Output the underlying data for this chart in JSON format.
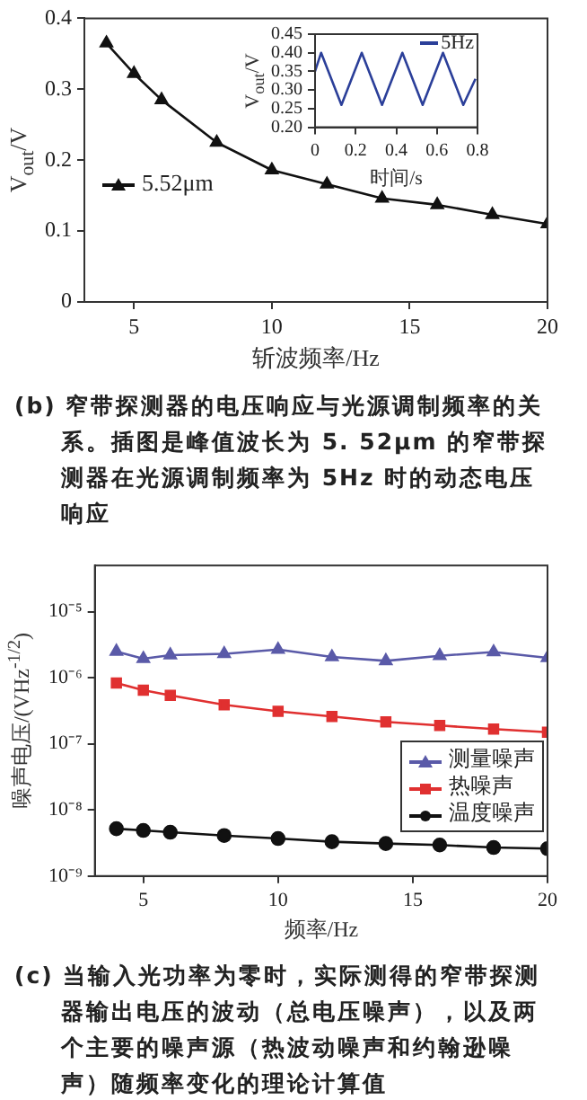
{
  "chart_data": [
    {
      "type": "line",
      "xlabel": "斩波频率/Hz",
      "ylabel": "V$_{out}$/V",
      "x": [
        4,
        5,
        6,
        8,
        10,
        12,
        14,
        16,
        18,
        20
      ],
      "series": [
        {
          "name": "5.52μm",
          "color": "#111111",
          "values": [
            0.365,
            0.322,
            0.285,
            0.225,
            0.186,
            0.166,
            0.146,
            0.137,
            0.123,
            0.11
          ]
        }
      ],
      "xlim": [
        3.2,
        20
      ],
      "xticks": [
        5,
        10,
        15,
        20
      ],
      "ylim": [
        0,
        0.4
      ],
      "yticks": [
        0,
        0.1,
        0.2,
        0.3,
        0.4
      ],
      "marker": "triangle",
      "legend": "left",
      "annotations": [
        "(b) 窄带探测器的电压响应与光源调制频率的关系。插图是峰值波长为 5. 52μm 的窄带探测器在光源调制频率为 5Hz 时的动态电压响应"
      ]
    },
    {
      "type": "line",
      "xlabel": "时间/s",
      "ylabel": "V$_{out}$/V",
      "x": [
        0,
        0.03,
        0.13,
        0.23,
        0.33,
        0.43,
        0.53,
        0.63,
        0.73,
        0.79
      ],
      "series": [
        {
          "name": "5Hz",
          "color": "#2b3f99",
          "values": [
            0.35,
            0.4,
            0.26,
            0.4,
            0.26,
            0.4,
            0.26,
            0.4,
            0.26,
            0.33
          ]
        }
      ],
      "xlim": [
        0,
        0.8
      ],
      "xticks": [
        0,
        0.2,
        0.4,
        0.6,
        0.8
      ],
      "ylim": [
        0.2,
        0.45
      ],
      "yticks": [
        {
          "value": 0.2,
          "label": "0.20"
        },
        {
          "value": 0.25,
          "label": "0.25"
        },
        {
          "value": 0.3,
          "label": "0.30"
        },
        {
          "value": 0.35,
          "label": "0.35"
        },
        {
          "value": 0.4,
          "label": "0.40"
        },
        {
          "value": 0.45,
          "label": "0.45"
        }
      ],
      "marker": "none",
      "legend": "top right"
    },
    {
      "type": "line",
      "xlabel": "频率/Hz",
      "ylabel": "噪声电压/(VHz$^{-1/2}$)",
      "x": [
        4,
        5,
        6,
        8,
        10,
        12,
        14,
        16,
        18,
        20
      ],
      "log": "y",
      "series": [
        {
          "name": "测量噪声",
          "color": "#5a5aa8",
          "marker": "triangle",
          "values": [
            2.5e-06,
            1.94e-06,
            2.2e-06,
            2.3e-06,
            2.67e-06,
            2.06e-06,
            1.8e-06,
            2.15e-06,
            2.45e-06,
            2e-06
          ]
        },
        {
          "name": "热噪声",
          "color": "#e03030",
          "marker": "square",
          "values": [
            8.3e-07,
            6.5e-07,
            5.4e-07,
            3.9e-07,
            3.1e-07,
            2.6e-07,
            2.15e-07,
            1.9e-07,
            1.67e-07,
            1.5e-07
          ]
        },
        {
          "name": "温度噪声",
          "color": "#111111",
          "marker": "circle",
          "values": [
            5.2e-09,
            4.9e-09,
            4.6e-09,
            4.1e-09,
            3.7e-09,
            3.3e-09,
            3.1e-09,
            2.95e-09,
            2.7e-09,
            2.6e-09
          ]
        }
      ],
      "xlim": [
        3.2,
        20
      ],
      "xticks": [
        5,
        10,
        15,
        20
      ],
      "ylim": [
        1e-09,
        5e-05
      ],
      "yticks": [
        {
          "value": 1e-09,
          "label": "10⁻⁹"
        },
        {
          "value": 1e-08,
          "label": "10⁻⁸"
        },
        {
          "value": 1e-07,
          "label": "10⁻⁷"
        },
        {
          "value": 1e-06,
          "label": "10⁻⁶"
        },
        {
          "value": 1e-05,
          "label": "10⁻⁵"
        }
      ],
      "legend": "bottom right",
      "annotations": [
        "(c) 当输入光功率为零时，实际测得的窄带探测器输出电压的波动（总电压噪声），以及两个主要的噪声源（热波动噪声和约翰逊噪声）随频率变化的理论计算值"
      ]
    }
  ]
}
